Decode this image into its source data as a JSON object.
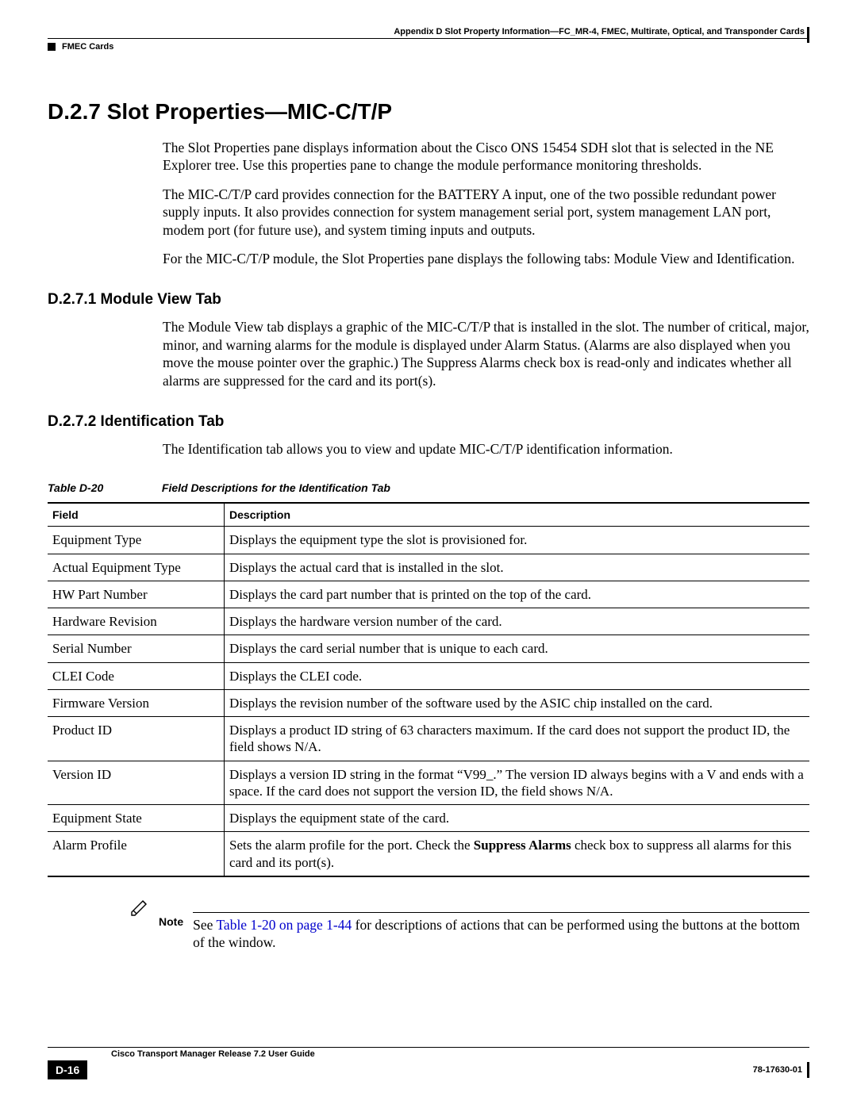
{
  "header": {
    "appendix_line": "Appendix D      Slot Property Information—FC_MR-4, FMEC, Multirate, Optical, and Transponder Cards",
    "section_label": "FMEC Cards"
  },
  "h1": "D.2.7  Slot Properties—MIC-C/T/P",
  "intro": {
    "p1": "The Slot Properties pane displays information about the Cisco ONS 15454 SDH slot that is selected in the NE Explorer tree. Use this properties pane to change the module performance monitoring thresholds.",
    "p2": "The MIC-C/T/P card provides connection for the BATTERY A input, one of the two possible redundant power supply inputs. It also provides connection for system management serial port, system management LAN port, modem port (for future use), and system timing inputs and outputs.",
    "p3": "For the MIC-C/T/P module, the Slot Properties pane displays the following tabs: Module View and Identification."
  },
  "sec1": {
    "heading": "D.2.7.1  Module View Tab",
    "p": "The Module View tab displays a graphic of the MIC-C/T/P that is installed in the slot. The number of critical, major, minor, and warning alarms for the module is displayed under Alarm Status. (Alarms are also displayed when you move the mouse pointer over the graphic.) The Suppress Alarms check box is read-only and indicates whether all alarms are suppressed for the card and its port(s)."
  },
  "sec2": {
    "heading": "D.2.7.2  Identification Tab",
    "p": "The Identification tab allows you to view and update MIC-C/T/P identification information."
  },
  "table": {
    "caption_num": "Table D-20",
    "caption_title": "Field Descriptions for the Identification Tab",
    "columns": [
      "Field",
      "Description"
    ],
    "rows": [
      [
        "Equipment Type",
        "Displays the equipment type the slot is provisioned for."
      ],
      [
        "Actual Equipment Type",
        "Displays the actual card that is installed in the slot."
      ],
      [
        "HW Part Number",
        "Displays the card part number that is printed on the top of the card."
      ],
      [
        "Hardware Revision",
        "Displays the hardware version number of the card."
      ],
      [
        "Serial Number",
        "Displays the card serial number that is unique to each card."
      ],
      [
        "CLEI Code",
        "Displays the CLEI code."
      ],
      [
        "Firmware Version",
        "Displays the revision number of the software used by the ASIC chip installed on the card."
      ],
      [
        "Product ID",
        "Displays a product ID string of 63 characters maximum. If the card does not support the product ID, the field shows N/A."
      ],
      [
        "Version ID",
        "Displays a version ID string in the format “V99_.” The version ID always begins with a V and ends with a space. If the card does not support the version ID, the field shows N/A."
      ],
      [
        "Equipment State",
        "Displays the equipment state of the card."
      ]
    ],
    "alarm_row": {
      "field": "Alarm Profile",
      "desc_pre": "Sets the alarm profile for the port. Check the ",
      "desc_bold": "Suppress Alarms",
      "desc_post": " check box to suppress all alarms for this card and its port(s)."
    }
  },
  "note": {
    "label": "Note",
    "pre": "See ",
    "link": "Table 1-20 on page 1-44",
    "post": " for descriptions of actions that can be performed using the buttons at the bottom of the window."
  },
  "footer": {
    "title": "Cisco Transport Manager Release 7.2 User Guide",
    "page": "D-16",
    "docref": "78-17630-01"
  }
}
